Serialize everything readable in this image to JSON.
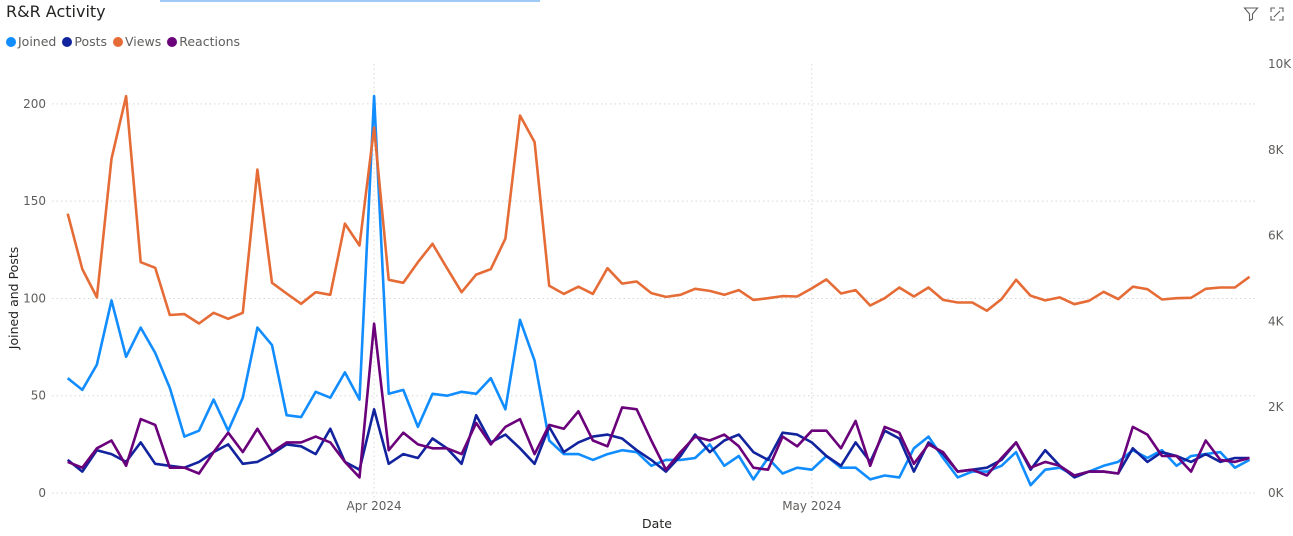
{
  "header": {
    "title": "R&R Activity"
  },
  "icons": [
    "filter-icon",
    "focus-mode-icon"
  ],
  "chart_data": {
    "type": "line",
    "title": "R&R Activity",
    "xlabel": "Date",
    "ylabel": "Joined and Posts",
    "y2label": "",
    "x_start": "2024-03-11",
    "x_end": "2024-05-31",
    "x_ticks": [
      {
        "date": "2024-04-01",
        "label": "Apr 2024"
      },
      {
        "date": "2024-05-01",
        "label": "May 2024"
      }
    ],
    "ylim": [
      0,
      220.5
    ],
    "y_ticks": [
      0,
      50,
      100,
      150,
      200
    ],
    "y2lim": [
      0,
      10000
    ],
    "y2_ticks": [
      {
        "value": 0,
        "label": "0K"
      },
      {
        "value": 2000,
        "label": "2K"
      },
      {
        "value": 4000,
        "label": "4K"
      },
      {
        "value": 6000,
        "label": "6K"
      },
      {
        "value": 8000,
        "label": "8K"
      },
      {
        "value": 10000,
        "label": "10K"
      }
    ],
    "grid": true,
    "legend_position": "top-left",
    "series": [
      {
        "name": "Joined",
        "axis": "left",
        "color": "#118DFF",
        "values": [
          59,
          53,
          66,
          99,
          70,
          85,
          72,
          54,
          29,
          32,
          48,
          32,
          49,
          85,
          76,
          40,
          39,
          52,
          49,
          62,
          48,
          204,
          51,
          53,
          34,
          51,
          50,
          52,
          51,
          59,
          43,
          89,
          68,
          27,
          20,
          20,
          17,
          20,
          22,
          21,
          14,
          17,
          17,
          18,
          25,
          14,
          19,
          7,
          18,
          10,
          13,
          12,
          19,
          13,
          13,
          7,
          9,
          8,
          23,
          29,
          18,
          8,
          11,
          11,
          14,
          21,
          4,
          12,
          13,
          9,
          11,
          14,
          16,
          22,
          18,
          22,
          14,
          19,
          20,
          21,
          13,
          17
        ]
      },
      {
        "name": "Posts",
        "axis": "left",
        "color": "#12239E",
        "values": [
          17,
          11,
          22,
          20,
          16,
          26,
          15,
          14,
          13,
          16,
          21,
          25,
          15,
          16,
          20,
          25,
          24,
          20,
          33,
          16,
          12,
          43,
          15,
          20,
          18,
          28,
          23,
          15,
          40,
          26,
          30,
          23,
          15,
          34,
          21,
          26,
          29,
          30,
          28,
          22,
          17,
          11,
          19,
          30,
          21,
          27,
          30,
          21,
          17,
          31,
          30,
          26,
          19,
          14,
          26,
          16,
          32,
          28,
          11,
          26,
          20,
          11,
          12,
          13,
          17,
          26,
          12,
          22,
          14,
          8,
          11,
          11,
          10,
          23,
          16,
          21,
          19,
          16,
          20,
          16,
          18,
          18
        ]
      },
      {
        "name": "Views",
        "axis": "right",
        "color": "#E66C37",
        "values": [
          6510,
          5220,
          4560,
          7790,
          9250,
          5380,
          5250,
          4150,
          4170,
          3950,
          4200,
          4060,
          4200,
          7540,
          4900,
          4650,
          4410,
          4680,
          4620,
          6280,
          5770,
          8520,
          4970,
          4900,
          5380,
          5810,
          5240,
          4680,
          5090,
          5220,
          5930,
          8800,
          8180,
          4830,
          4640,
          4810,
          4640,
          5240,
          4880,
          4930,
          4660,
          4570,
          4620,
          4760,
          4710,
          4620,
          4730,
          4500,
          4540,
          4590,
          4580,
          4770,
          4980,
          4650,
          4730,
          4370,
          4540,
          4790,
          4580,
          4790,
          4500,
          4440,
          4440,
          4250,
          4520,
          4970,
          4600,
          4490,
          4560,
          4400,
          4480,
          4690,
          4520,
          4810,
          4750,
          4510,
          4540,
          4550,
          4760,
          4790,
          4790,
          5040
        ]
      },
      {
        "name": "Reactions",
        "axis": "left",
        "color": "#6B007B",
        "values": [
          16,
          13,
          23,
          27,
          14,
          38,
          35,
          13,
          13,
          10,
          21,
          31,
          21,
          33,
          21,
          26,
          26,
          29,
          26,
          16,
          8,
          87,
          22,
          31,
          25,
          23,
          23,
          20,
          36,
          25,
          34,
          38,
          20,
          35,
          33,
          42,
          27,
          24,
          44,
          43,
          27,
          12,
          21,
          29,
          27,
          30,
          24,
          13,
          12,
          29,
          24,
          32,
          32,
          23,
          37,
          14,
          34,
          31,
          15,
          25,
          21,
          11,
          12,
          9,
          18,
          26,
          13,
          16,
          14,
          9,
          11,
          11,
          10,
          34,
          30,
          19,
          19,
          11,
          27,
          17,
          16,
          18
        ]
      }
    ]
  }
}
